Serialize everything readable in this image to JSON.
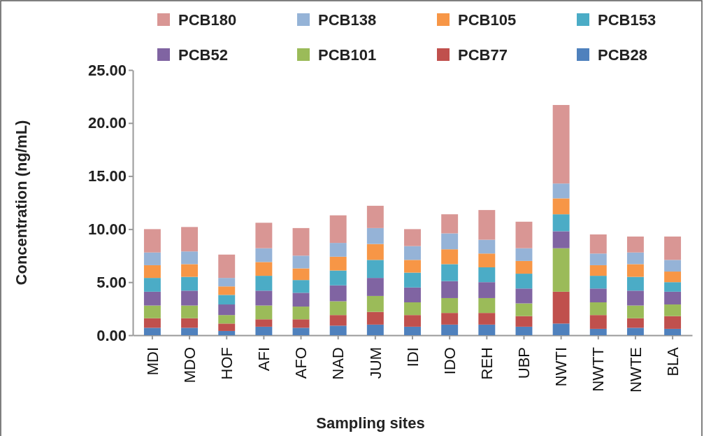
{
  "chart_data": {
    "type": "bar",
    "stacked": true,
    "xlabel": "Sampling sites",
    "ylabel": "Concentration (ng/mL)",
    "categories": [
      "MDI",
      "MDO",
      "HOF",
      "AFI",
      "AFO",
      "NAD",
      "JUM",
      "IDI",
      "IDO",
      "REH",
      "UBP",
      "NWTI",
      "NWTT",
      "NWTE",
      "BLA"
    ],
    "series": [
      {
        "name": "PCB28",
        "color": "#4f81bd",
        "values": [
          0.7,
          0.7,
          0.4,
          0.8,
          0.7,
          0.9,
          1.0,
          0.8,
          1.0,
          1.0,
          0.8,
          1.1,
          0.6,
          0.7,
          0.6
        ]
      },
      {
        "name": "PCB77",
        "color": "#c0504d",
        "values": [
          0.9,
          0.9,
          0.7,
          0.7,
          0.8,
          1.0,
          1.2,
          1.1,
          1.1,
          1.1,
          1.0,
          3.0,
          1.3,
          0.9,
          1.2
        ]
      },
      {
        "name": "PCB101",
        "color": "#9bbb59",
        "values": [
          1.2,
          1.2,
          0.8,
          1.3,
          1.2,
          1.3,
          1.5,
          1.2,
          1.4,
          1.4,
          1.2,
          4.1,
          1.2,
          1.2,
          1.1
        ]
      },
      {
        "name": "PCB52",
        "color": "#8064a2",
        "values": [
          1.3,
          1.4,
          1.0,
          1.4,
          1.3,
          1.5,
          1.7,
          1.4,
          1.6,
          1.5,
          1.4,
          1.6,
          1.3,
          1.4,
          1.2
        ]
      },
      {
        "name": "PCB153",
        "color": "#4bacc6",
        "values": [
          1.3,
          1.3,
          0.9,
          1.4,
          1.2,
          1.4,
          1.7,
          1.4,
          1.6,
          1.4,
          1.4,
          1.6,
          1.2,
          1.3,
          0.9
        ]
      },
      {
        "name": "PCB105",
        "color": "#f79646",
        "values": [
          1.2,
          1.2,
          0.8,
          1.3,
          1.1,
          1.3,
          1.5,
          1.2,
          1.4,
          1.3,
          1.2,
          1.5,
          1.0,
          1.2,
          1.0
        ]
      },
      {
        "name": "PCB138",
        "color": "#95b3d7",
        "values": [
          1.2,
          1.2,
          0.8,
          1.3,
          1.2,
          1.3,
          1.5,
          1.3,
          1.5,
          1.3,
          1.2,
          1.4,
          1.1,
          1.1,
          1.1
        ]
      },
      {
        "name": "PCB180",
        "color": "#d99694",
        "values": [
          2.2,
          2.3,
          2.2,
          2.4,
          2.6,
          2.6,
          2.1,
          1.6,
          1.8,
          2.8,
          2.5,
          7.4,
          1.8,
          1.5,
          2.2
        ]
      }
    ],
    "ylim": [
      0,
      25
    ],
    "yticks": [
      {
        "value": 0,
        "label": "0.00"
      },
      {
        "value": 5,
        "label": "5.00"
      },
      {
        "value": 10,
        "label": "10.00"
      },
      {
        "value": 15,
        "label": "15.00"
      },
      {
        "value": 20,
        "label": "20.00"
      },
      {
        "value": 25,
        "label": "25.00"
      }
    ],
    "legend": "top",
    "grid": false
  }
}
